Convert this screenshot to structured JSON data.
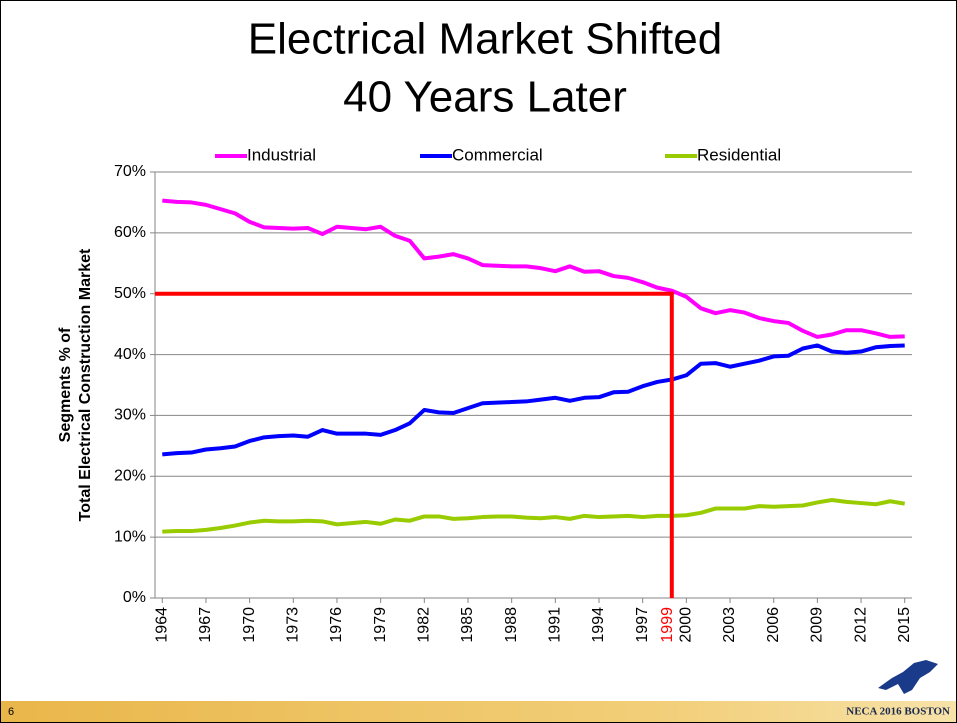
{
  "chart_data": {
    "type": "line",
    "title": [
      "Electrical Market Shifted",
      "40 Years Later"
    ],
    "ylabel": [
      "Segments % of",
      "Total Electrical Construction Market"
    ],
    "x": [
      1964,
      1965,
      1966,
      1967,
      1968,
      1969,
      1970,
      1971,
      1972,
      1973,
      1974,
      1975,
      1976,
      1977,
      1978,
      1979,
      1980,
      1981,
      1982,
      1983,
      1984,
      1985,
      1986,
      1987,
      1988,
      1989,
      1990,
      1991,
      1992,
      1993,
      1994,
      1995,
      1996,
      1997,
      1998,
      1999,
      2000,
      2001,
      2002,
      2003,
      2004,
      2005,
      2006,
      2007,
      2008,
      2009,
      2010,
      2011,
      2012,
      2013,
      2014,
      2015
    ],
    "series": [
      {
        "name": "Industrial",
        "color": "#ff00ff",
        "values": [
          65.3,
          65.1,
          65.0,
          64.6,
          63.9,
          63.2,
          61.8,
          60.9,
          60.8,
          60.7,
          60.8,
          59.8,
          61.0,
          60.8,
          60.6,
          61.0,
          59.5,
          58.7,
          55.8,
          56.1,
          56.5,
          55.8,
          54.7,
          54.6,
          54.5,
          54.5,
          54.2,
          53.7,
          54.5,
          53.6,
          53.7,
          52.9,
          52.6,
          51.9,
          51.0,
          50.5,
          49.5,
          47.6,
          46.8,
          47.3,
          46.9,
          46.0,
          45.5,
          45.2,
          43.9,
          42.9,
          43.3,
          44.0,
          44.0,
          43.5,
          42.9,
          43.0
        ]
      },
      {
        "name": "Commercial",
        "color": "#0000ff",
        "values": [
          23.6,
          23.8,
          23.9,
          24.4,
          24.6,
          24.9,
          25.8,
          26.4,
          26.6,
          26.7,
          26.5,
          27.6,
          27.0,
          27.0,
          27.0,
          26.8,
          27.6,
          28.7,
          30.9,
          30.5,
          30.4,
          31.2,
          32.0,
          32.1,
          32.2,
          32.3,
          32.6,
          32.9,
          32.4,
          32.9,
          33.0,
          33.8,
          33.9,
          34.8,
          35.5,
          35.9,
          36.6,
          38.5,
          38.6,
          38.0,
          38.5,
          39.0,
          39.7,
          39.8,
          41.0,
          41.5,
          40.5,
          40.3,
          40.5,
          41.2,
          41.4,
          41.5
        ]
      },
      {
        "name": "Residential",
        "color": "#99cc00",
        "values": [
          10.9,
          11.0,
          11.0,
          11.2,
          11.5,
          11.9,
          12.4,
          12.7,
          12.6,
          12.6,
          12.7,
          12.6,
          12.1,
          12.3,
          12.5,
          12.2,
          12.9,
          12.7,
          13.4,
          13.4,
          13.0,
          13.1,
          13.3,
          13.4,
          13.4,
          13.2,
          13.1,
          13.3,
          13.0,
          13.5,
          13.3,
          13.4,
          13.5,
          13.3,
          13.5,
          13.5,
          13.6,
          14.0,
          14.7,
          14.7,
          14.7,
          15.1,
          15.0,
          15.1,
          15.2,
          15.7,
          16.1,
          15.8,
          15.6,
          15.4,
          15.9,
          15.5
        ]
      }
    ],
    "xlim": [
      1963.5,
      2015.5
    ],
    "xticks": [
      1964,
      1967,
      1970,
      1973,
      1976,
      1979,
      1982,
      1985,
      1988,
      1991,
      1994,
      1997,
      2000,
      2003,
      2006,
      2009,
      2012,
      2015
    ],
    "ylim": [
      0,
      70
    ],
    "yticks": [
      {
        "value": 0,
        "label": "0%"
      },
      {
        "value": 10,
        "label": "10%"
      },
      {
        "value": 20,
        "label": "20%"
      },
      {
        "value": 30,
        "label": "30%"
      },
      {
        "value": 40,
        "label": "40%"
      },
      {
        "value": 50,
        "label": "50%"
      },
      {
        "value": 60,
        "label": "60%"
      },
      {
        "value": 70,
        "label": "70%"
      }
    ],
    "grid": true,
    "legend": "top",
    "reference": {
      "x": 1999,
      "y": 50,
      "label": "1999",
      "color": "#ff0000"
    }
  },
  "footer": {
    "slide_number": "6",
    "text": "NECA 2016 BOSTON"
  }
}
